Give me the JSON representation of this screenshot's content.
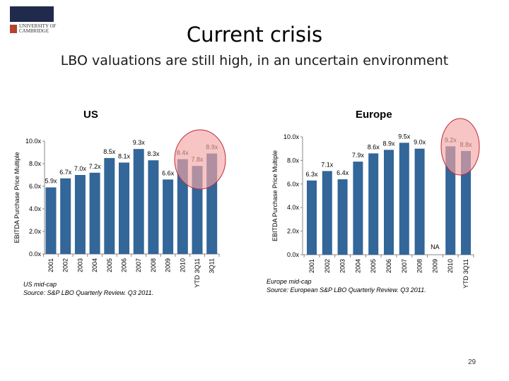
{
  "header": {
    "title": "Current crisis",
    "subtitle": "LBO valuations are still high, in an uncertain environment",
    "logo_text": "UNIVERSITY OF CAMBRIDGE"
  },
  "chart_data": [
    {
      "type": "bar",
      "title": "US",
      "ylabel": "EBITDA Purchase Price Multiple",
      "ylim": [
        0,
        10
      ],
      "yticks": [
        "0.0x",
        "2.0x",
        "4.0x",
        "6.0x",
        "8.0x",
        "10.0x"
      ],
      "categories": [
        "2001",
        "2002",
        "2003",
        "2004",
        "2005",
        "2006",
        "2007",
        "2008",
        "2009",
        "2010",
        "YTD 3Q11",
        "3Q11"
      ],
      "values": [
        5.9,
        6.7,
        7.0,
        7.2,
        8.5,
        8.1,
        9.3,
        8.3,
        6.6,
        8.4,
        7.8,
        8.9
      ],
      "labels": [
        "5.9x",
        "6.7x",
        "7.0x",
        "7.2x",
        "8.5x",
        "8.1x",
        "9.3x",
        "8.3x",
        "6.6x",
        "8.4x",
        "7.8x",
        "8.9x"
      ],
      "highlight": [
        "2010",
        "YTD 3Q11",
        "3Q11"
      ],
      "bar_color": "#336699",
      "highlight_color": "#f4a6a6",
      "note": "US mid-cap",
      "source": "Source: S&P LBO Quarterly Review. Q3 2011."
    },
    {
      "type": "bar",
      "title": "Europe",
      "ylabel": "EBITDA Purchase Price Multiple",
      "ylim": [
        0,
        10
      ],
      "yticks": [
        "0.0x",
        "2.0x",
        "4.0x",
        "6.0x",
        "8.0x",
        "10.0x"
      ],
      "categories": [
        "2001",
        "2002",
        "2003",
        "2004",
        "2005",
        "2006",
        "2007",
        "2008",
        "2009",
        "2010",
        "YTD 3Q11"
      ],
      "values": [
        6.3,
        7.1,
        6.4,
        7.9,
        8.6,
        8.9,
        9.5,
        9.0,
        null,
        9.2,
        8.8
      ],
      "labels": [
        "6.3x",
        "7.1x",
        "6.4x",
        "7.9x",
        "8.6x",
        "8.9x",
        "9.5x",
        "9.0x",
        "NA",
        "9.2x",
        "8.8x"
      ],
      "highlight": [
        "2010",
        "YTD 3Q11"
      ],
      "bar_color": "#336699",
      "highlight_color": "#f4a6a6",
      "note": "Europe mid-cap",
      "source": "Source: European S&P LBO Quarterly Review. Q3 2011."
    }
  ],
  "page_number": "29"
}
